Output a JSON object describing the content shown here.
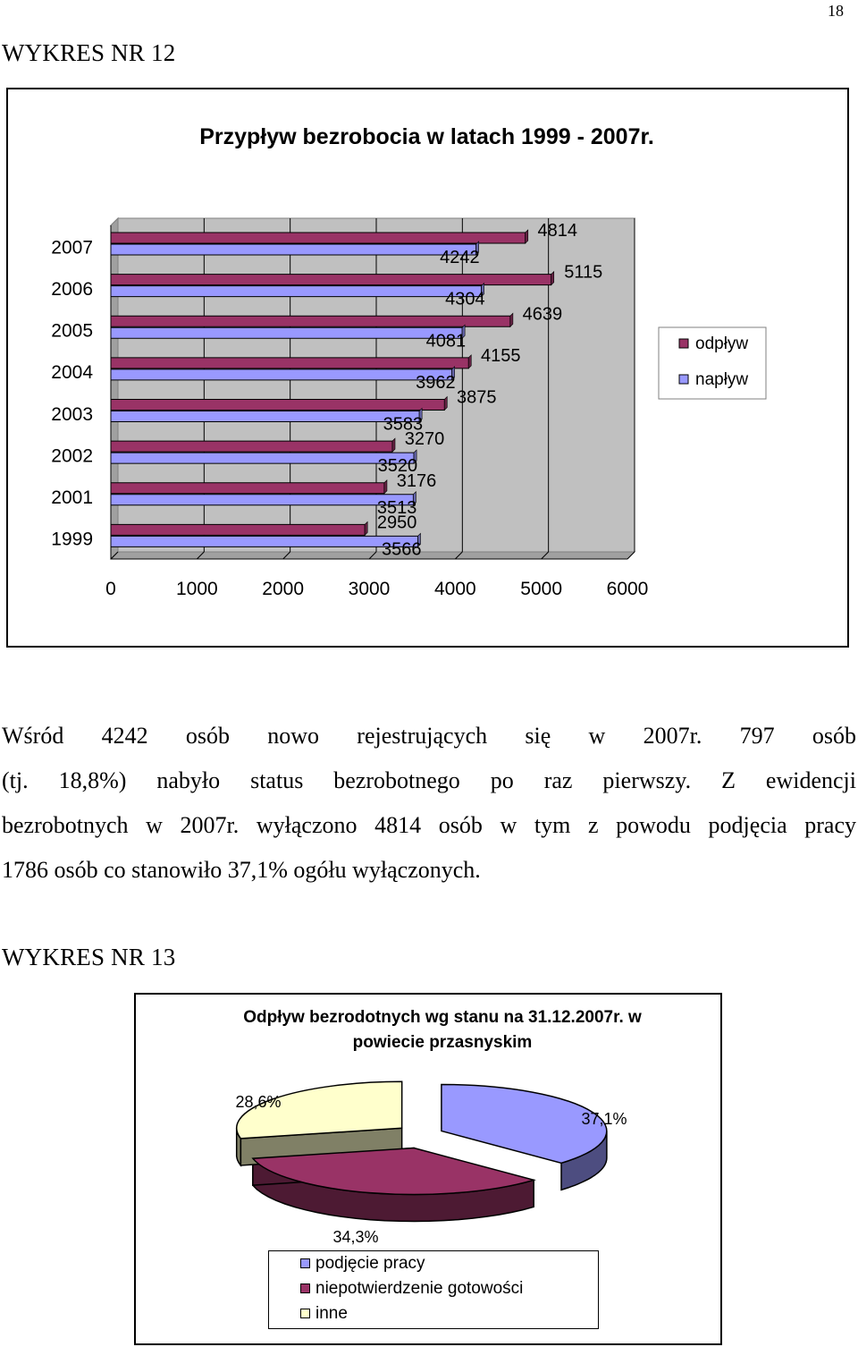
{
  "page_number": "18",
  "heading_12": "WYKRES NR 12",
  "heading_13": "WYKRES NR 13",
  "paragraph": {
    "line1": "Wśród 4242 osób nowo rejestrujących się w 2007r. 797 osób",
    "line2": "(tj. 18,8%) nabyło status bezrobotnego po raz pierwszy. Z ewidencji",
    "line3": "bezrobotnych w 2007r. wyłączono 4814 osób w tym z powodu podjęcia pracy",
    "line4": "1786 osób co stanowiło 37,1% ogółu wyłączonych."
  },
  "chart_data": [
    {
      "type": "bar",
      "orientation": "horizontal",
      "title": "Przypływ bezrobocia w latach 1999 - 2007r.",
      "categories": [
        "1999",
        "2001",
        "2002",
        "2003",
        "2004",
        "2005",
        "2006",
        "2007"
      ],
      "series": [
        {
          "name": "odpływ",
          "values": [
            2950,
            3176,
            3270,
            3875,
            4155,
            4639,
            5115,
            4814
          ],
          "color": "#993366"
        },
        {
          "name": "napływ",
          "values": [
            3566,
            3513,
            3520,
            3583,
            3962,
            4081,
            4304,
            4242
          ],
          "color": "#9999ff"
        }
      ],
      "xlim": [
        0,
        6000
      ],
      "xticks": [
        "0",
        "1000",
        "2000",
        "3000",
        "4000",
        "5000",
        "6000"
      ],
      "legend": "right",
      "plot_background": "#c0c0c0",
      "grid": true
    },
    {
      "type": "pie",
      "style": "3d",
      "title": "Odpływ bezrodotnych wg stanu na 31.12.2007r. w powiecie przasnyskim",
      "title_line1": "Odpływ bezrodotnych wg stanu na 31.12.2007r. w",
      "title_line2": "powiecie przasnyskim",
      "labels": [
        "podjęcie pracy",
        "niepotwierdzenie gotowości",
        "inne"
      ],
      "values": [
        37.1,
        34.3,
        28.6
      ],
      "data_labels": [
        "37,1%",
        "34,3%",
        "28,6%"
      ],
      "colors": [
        "#9999ff",
        "#993366",
        "#ffffcc"
      ],
      "legend": "bottom"
    }
  ]
}
